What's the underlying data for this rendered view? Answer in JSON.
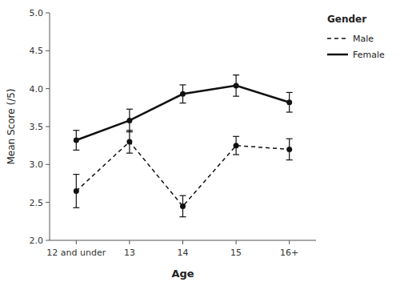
{
  "chart_data": {
    "type": "line",
    "xlabel": "Age",
    "ylabel": "Mean Score (/5)",
    "categories": [
      "12 and under",
      "13",
      "14",
      "15",
      "16+"
    ],
    "series": [
      {
        "name": "Male",
        "color": "#111111",
        "line_style": "dashed",
        "marker": "circle",
        "values": [
          2.65,
          3.3,
          2.45,
          3.25,
          3.2
        ],
        "errors": [
          0.22,
          0.15,
          0.14,
          0.12,
          0.14
        ]
      },
      {
        "name": "Female",
        "color": "#111111",
        "line_style": "solid",
        "marker": "circle",
        "values": [
          3.32,
          3.58,
          3.93,
          4.04,
          3.82
        ],
        "errors": [
          0.13,
          0.15,
          0.12,
          0.14,
          0.13
        ]
      }
    ],
    "ylim": [
      2.0,
      5.0
    ],
    "yticks": [
      {
        "value": 2.0,
        "label": "2.0"
      },
      2.5,
      {
        "value": 3.0,
        "label": "3.0"
      },
      3.5,
      {
        "value": 4.0,
        "label": "4.0"
      },
      4.5,
      {
        "value": 5.0,
        "label": "5.0"
      }
    ],
    "grid": false,
    "legend": "right",
    "legend_title": "Gender",
    "background_color": "#ffffff"
  }
}
